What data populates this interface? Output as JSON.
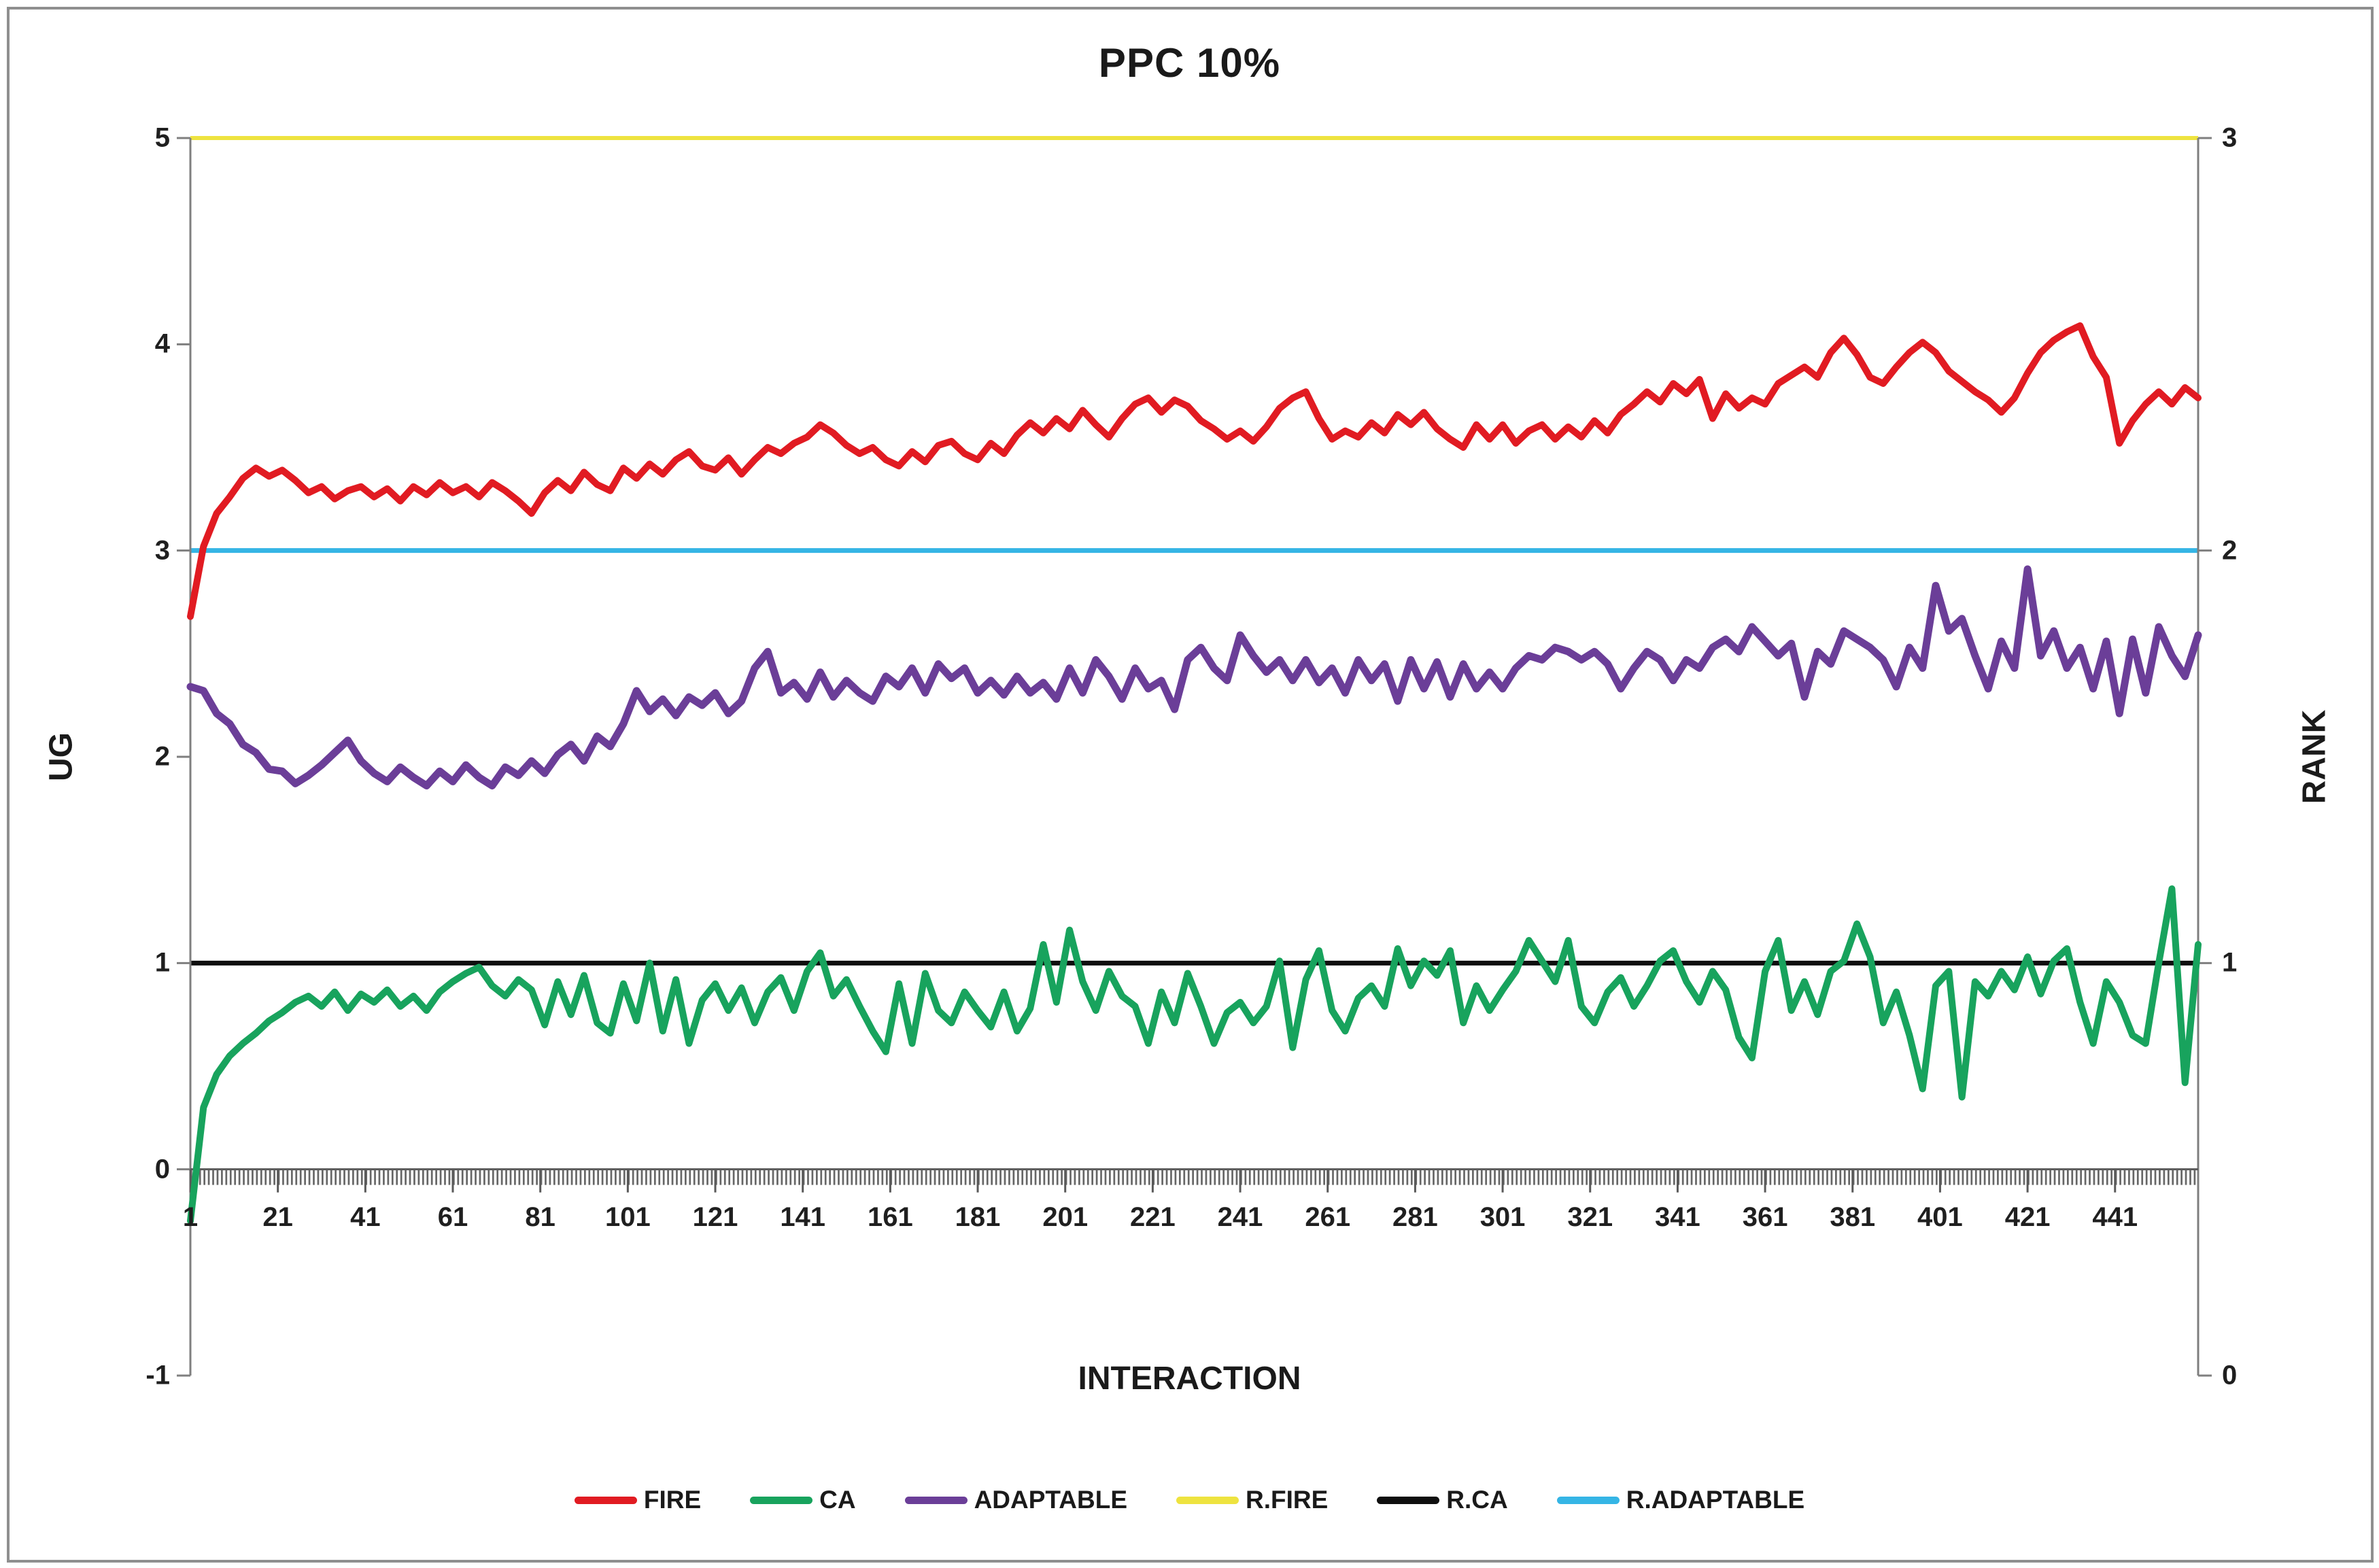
{
  "chart_data": {
    "type": "line",
    "title": "PPC 10%",
    "xlabel": "INTERACTION",
    "ylabel_left": "UG",
    "ylabel_right": "RANK",
    "x_start": 1,
    "x_step": 3,
    "x_max": 460,
    "x_tick_labels": [
      1,
      21,
      41,
      61,
      81,
      101,
      121,
      141,
      161,
      181,
      201,
      221,
      241,
      261,
      281,
      301,
      321,
      341,
      361,
      381,
      401,
      421,
      441
    ],
    "ylim_left": [
      -1,
      5
    ],
    "ylim_right": [
      0,
      3
    ],
    "y_ticks_left": [
      5,
      4,
      3,
      2,
      1,
      0,
      -1
    ],
    "y_ticks_right": [
      3,
      2,
      1,
      0
    ],
    "legend_position": "bottom",
    "grid": "off",
    "axis_color": "#7f7f7f",
    "minor_tick_color": "#666666",
    "series": [
      {
        "name": "FIRE",
        "color": "#e11b22",
        "axis": "left",
        "line_width": 10,
        "values": [
          2.68,
          3.02,
          3.18,
          3.26,
          3.35,
          3.4,
          3.36,
          3.39,
          3.34,
          3.28,
          3.31,
          3.25,
          3.29,
          3.31,
          3.26,
          3.3,
          3.24,
          3.31,
          3.27,
          3.33,
          3.28,
          3.31,
          3.26,
          3.33,
          3.29,
          3.24,
          3.18,
          3.28,
          3.34,
          3.29,
          3.38,
          3.32,
          3.29,
          3.4,
          3.35,
          3.42,
          3.37,
          3.44,
          3.48,
          3.41,
          3.39,
          3.45,
          3.37,
          3.44,
          3.5,
          3.47,
          3.52,
          3.55,
          3.61,
          3.57,
          3.51,
          3.47,
          3.5,
          3.44,
          3.41,
          3.48,
          3.43,
          3.51,
          3.53,
          3.47,
          3.44,
          3.52,
          3.47,
          3.56,
          3.62,
          3.57,
          3.64,
          3.59,
          3.68,
          3.61,
          3.55,
          3.64,
          3.71,
          3.74,
          3.67,
          3.73,
          3.7,
          3.63,
          3.59,
          3.54,
          3.58,
          3.53,
          3.6,
          3.69,
          3.74,
          3.77,
          3.64,
          3.54,
          3.58,
          3.55,
          3.62,
          3.57,
          3.66,
          3.61,
          3.67,
          3.59,
          3.54,
          3.5,
          3.61,
          3.54,
          3.61,
          3.52,
          3.58,
          3.61,
          3.54,
          3.6,
          3.55,
          3.63,
          3.57,
          3.66,
          3.71,
          3.77,
          3.72,
          3.81,
          3.76,
          3.83,
          3.64,
          3.76,
          3.69,
          3.74,
          3.71,
          3.81,
          3.85,
          3.89,
          3.84,
          3.96,
          4.03,
          3.95,
          3.84,
          3.81,
          3.89,
          3.96,
          4.01,
          3.96,
          3.87,
          3.82,
          3.77,
          3.73,
          3.67,
          3.74,
          3.86,
          3.96,
          4.02,
          4.06,
          4.09,
          3.94,
          3.84,
          3.52,
          3.63,
          3.71,
          3.77,
          3.71,
          3.79,
          3.74
        ]
      },
      {
        "name": "CA",
        "color": "#18a35d",
        "axis": "left",
        "line_width": 10,
        "values": [
          -0.25,
          0.3,
          0.46,
          0.55,
          0.61,
          0.66,
          0.72,
          0.76,
          0.81,
          0.84,
          0.79,
          0.86,
          0.77,
          0.85,
          0.81,
          0.87,
          0.79,
          0.84,
          0.77,
          0.86,
          0.91,
          0.95,
          0.98,
          0.89,
          0.84,
          0.92,
          0.87,
          0.7,
          0.91,
          0.75,
          0.94,
          0.71,
          0.66,
          0.9,
          0.72,
          1.0,
          0.67,
          0.92,
          0.61,
          0.82,
          0.9,
          0.77,
          0.88,
          0.71,
          0.86,
          0.93,
          0.77,
          0.96,
          1.05,
          0.84,
          0.92,
          0.79,
          0.67,
          0.57,
          0.9,
          0.61,
          0.95,
          0.77,
          0.71,
          0.86,
          0.77,
          0.69,
          0.86,
          0.67,
          0.78,
          1.09,
          0.81,
          1.16,
          0.91,
          0.77,
          0.96,
          0.84,
          0.79,
          0.61,
          0.86,
          0.71,
          0.95,
          0.79,
          0.61,
          0.76,
          0.81,
          0.71,
          0.79,
          1.01,
          0.59,
          0.92,
          1.06,
          0.77,
          0.67,
          0.83,
          0.89,
          0.79,
          1.07,
          0.89,
          1.01,
          0.94,
          1.06,
          0.71,
          0.89,
          0.77,
          0.87,
          0.96,
          1.11,
          1.01,
          0.91,
          1.11,
          0.79,
          0.71,
          0.86,
          0.93,
          0.79,
          0.89,
          1.01,
          1.06,
          0.91,
          0.81,
          0.96,
          0.87,
          0.64,
          0.54,
          0.96,
          1.11,
          0.77,
          0.91,
          0.75,
          0.96,
          1.01,
          1.19,
          1.03,
          0.71,
          0.86,
          0.65,
          0.39,
          0.89,
          0.96,
          0.35,
          0.91,
          0.84,
          0.96,
          0.87,
          1.03,
          0.85,
          1.01,
          1.07,
          0.81,
          0.61,
          0.91,
          0.81,
          0.65,
          0.61,
          1.0,
          1.36,
          0.42,
          1.09
        ]
      },
      {
        "name": "ADAPTABLE",
        "color": "#6b3e98",
        "axis": "left",
        "line_width": 11,
        "values": [
          2.34,
          2.32,
          2.21,
          2.16,
          2.06,
          2.02,
          1.94,
          1.93,
          1.87,
          1.91,
          1.96,
          2.02,
          2.08,
          1.98,
          1.92,
          1.88,
          1.95,
          1.9,
          1.86,
          1.93,
          1.88,
          1.96,
          1.9,
          1.86,
          1.95,
          1.91,
          1.98,
          1.92,
          2.01,
          2.06,
          1.98,
          2.1,
          2.05,
          2.16,
          2.32,
          2.22,
          2.28,
          2.2,
          2.29,
          2.25,
          2.31,
          2.21,
          2.27,
          2.43,
          2.51,
          2.31,
          2.36,
          2.28,
          2.41,
          2.29,
          2.37,
          2.31,
          2.27,
          2.39,
          2.34,
          2.43,
          2.31,
          2.45,
          2.38,
          2.43,
          2.31,
          2.37,
          2.3,
          2.39,
          2.31,
          2.36,
          2.28,
          2.43,
          2.31,
          2.47,
          2.39,
          2.28,
          2.43,
          2.33,
          2.37,
          2.23,
          2.47,
          2.53,
          2.43,
          2.37,
          2.59,
          2.49,
          2.41,
          2.47,
          2.37,
          2.47,
          2.36,
          2.43,
          2.31,
          2.47,
          2.37,
          2.45,
          2.27,
          2.47,
          2.33,
          2.46,
          2.29,
          2.45,
          2.33,
          2.41,
          2.33,
          2.43,
          2.49,
          2.47,
          2.53,
          2.51,
          2.47,
          2.51,
          2.45,
          2.33,
          2.43,
          2.51,
          2.47,
          2.37,
          2.47,
          2.43,
          2.53,
          2.57,
          2.51,
          2.63,
          2.56,
          2.49,
          2.55,
          2.29,
          2.51,
          2.45,
          2.61,
          2.57,
          2.53,
          2.47,
          2.34,
          2.53,
          2.43,
          2.83,
          2.61,
          2.67,
          2.49,
          2.33,
          2.56,
          2.43,
          2.91,
          2.49,
          2.61,
          2.43,
          2.53,
          2.33,
          2.56,
          2.21,
          2.57,
          2.31,
          2.63,
          2.49,
          2.39,
          2.59
        ]
      },
      {
        "name": "R.FIRE",
        "color": "#eee33f",
        "axis": "right",
        "line_width": 6,
        "constant": 3
      },
      {
        "name": "R.CA",
        "color": "#0f0f0f",
        "axis": "right",
        "line_width": 7,
        "constant": 1
      },
      {
        "name": "R.ADAPTABLE",
        "color": "#35b5e5",
        "axis": "right",
        "line_width": 7,
        "constant": 2
      }
    ]
  }
}
